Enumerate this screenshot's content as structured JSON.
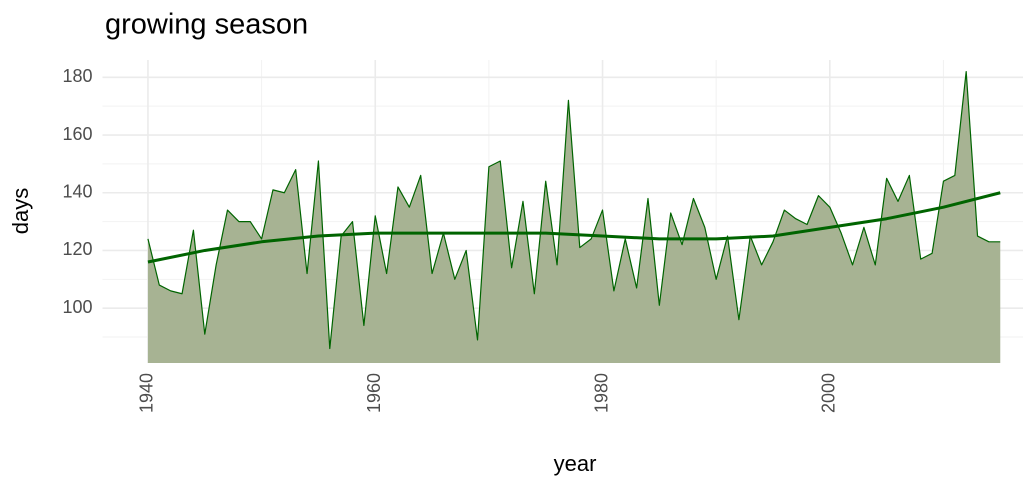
{
  "chart_data": {
    "type": "area",
    "title": "growing season",
    "x_label": "year",
    "y_label": "days",
    "x": [
      1940,
      1941,
      1942,
      1943,
      1944,
      1945,
      1946,
      1947,
      1948,
      1949,
      1950,
      1951,
      1952,
      1953,
      1954,
      1955,
      1956,
      1957,
      1958,
      1959,
      1960,
      1961,
      1962,
      1963,
      1964,
      1965,
      1966,
      1967,
      1968,
      1969,
      1970,
      1971,
      1972,
      1973,
      1974,
      1975,
      1976,
      1977,
      1978,
      1979,
      1980,
      1981,
      1982,
      1983,
      1984,
      1985,
      1986,
      1987,
      1988,
      1989,
      1990,
      1991,
      1992,
      1993,
      1994,
      1995,
      1996,
      1997,
      1998,
      1999,
      2000,
      2001,
      2002,
      2003,
      2004,
      2005,
      2006,
      2007,
      2008,
      2009,
      2010,
      2011,
      2012,
      2013,
      2014,
      2015
    ],
    "series": [
      {
        "color": "#006400",
        "fill": "#a7b393",
        "values": [
          124,
          108,
          106,
          105,
          127,
          91,
          115,
          134,
          130,
          130,
          124,
          141,
          140,
          148,
          112,
          151,
          86,
          125,
          130,
          94,
          132,
          112,
          142,
          135,
          146,
          112,
          126,
          110,
          120,
          89,
          149,
          151,
          114,
          137,
          105,
          144,
          115,
          172,
          121,
          124,
          134,
          106,
          124,
          107,
          138,
          101,
          133,
          122,
          138,
          128,
          110,
          125,
          96,
          125,
          115,
          123,
          134,
          131,
          129,
          139,
          135,
          126,
          115,
          128,
          115,
          145,
          137,
          146,
          117,
          119,
          144,
          146,
          182,
          125,
          123,
          123
        ]
      },
      {
        "color": "#006400",
        "smooth": true,
        "x": [
          1940,
          1945,
          1950,
          1955,
          1960,
          1965,
          1970,
          1975,
          1980,
          1985,
          1990,
          1995,
          2000,
          2005,
          2010,
          2015
        ],
        "values": [
          116,
          120,
          123,
          125,
          126,
          126,
          126,
          126,
          125,
          124,
          124,
          125,
          128,
          131,
          135,
          140
        ]
      }
    ],
    "xlim": [
      1936,
      2017
    ],
    "xticks": [
      1940,
      1960,
      1980,
      2000
    ],
    "ylim": [
      81,
      186
    ],
    "yticks": [
      100,
      120,
      140,
      160,
      180
    ],
    "grid": true
  }
}
